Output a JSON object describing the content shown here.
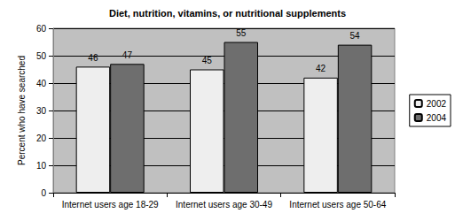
{
  "chart_data": {
    "type": "bar",
    "title": "Diet, nutrition, vitamins, or nutritional supplements",
    "y_label": "Percent who have searched",
    "categories": [
      "Internet users age 18-29",
      "Internet users age 30-49",
      "Internet users age 50-64"
    ],
    "series": [
      {
        "name": "2002",
        "color": "#eeeeee",
        "values": [
          46,
          45,
          42
        ]
      },
      {
        "name": "2004",
        "color": "#6e6e6e",
        "values": [
          47,
          55,
          54
        ]
      }
    ],
    "ylim": [
      0,
      60
    ],
    "yticks": [
      0,
      10,
      20,
      30,
      40,
      50,
      60
    ],
    "grid": true,
    "legend": "right",
    "data_labels": true
  }
}
